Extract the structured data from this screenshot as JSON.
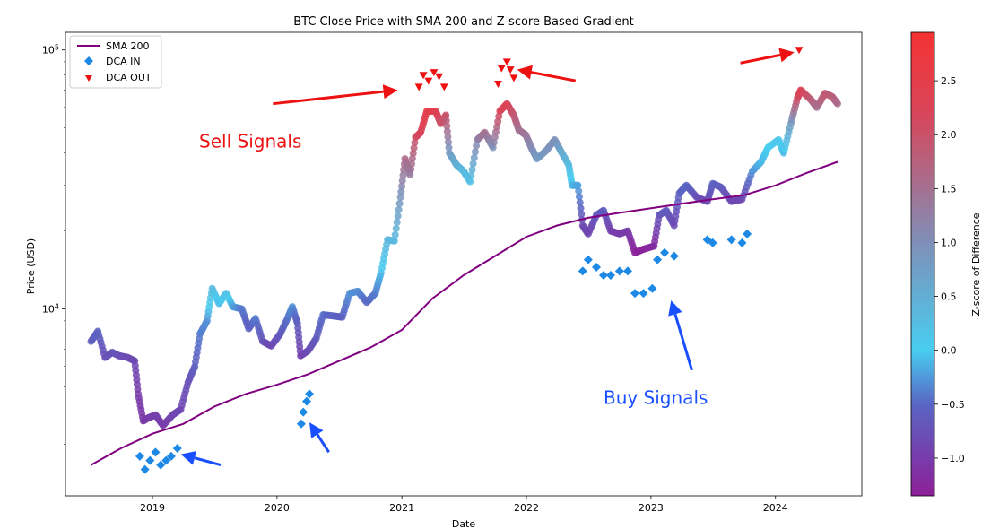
{
  "chart_data": {
    "type": "scatter",
    "title": "BTC Close Price with SMA 200 and Z-score Based Gradient",
    "xlabel": "Date",
    "ylabel": "Price (USD)",
    "y_scale": "log",
    "xlim": [
      "2018-04-21",
      "2024-09-10"
    ],
    "ylim": [
      1900,
      117000
    ],
    "x_ticks": [
      "2019",
      "2020",
      "2021",
      "2022",
      "2023",
      "2024"
    ],
    "y_ticks": [
      {
        "value": 10000,
        "base": "10",
        "exp": "4"
      },
      {
        "value": 100000,
        "base": "10",
        "exp": "5"
      }
    ],
    "legend": {
      "placement": "top-left",
      "entries": [
        {
          "label": "SMA 200",
          "color": "#800080",
          "marker": "line"
        },
        {
          "label": "DCA IN",
          "color": "#1e88e5",
          "marker": "diamond"
        },
        {
          "label": "DCA OUT",
          "color": "#ee1111",
          "marker": "triangle-down"
        }
      ]
    },
    "colorbar": {
      "label": "Z-score of Difference",
      "range": [
        -1.35,
        2.95
      ],
      "ticks": [
        -1.0,
        -0.5,
        0.0,
        0.5,
        1.0,
        1.5,
        2.0,
        2.5
      ],
      "tick_labels": [
        "−1.0",
        "−0.5",
        "0.0",
        "0.5",
        "1.0",
        "1.5",
        "2.0",
        "2.5"
      ],
      "stops": [
        {
          "v": -1.35,
          "color": "#8e1f98"
        },
        {
          "v": -0.5,
          "color": "#5966c4"
        },
        {
          "v": 0.0,
          "color": "#48cdf0"
        },
        {
          "v": 1.0,
          "color": "#7f8fb8"
        },
        {
          "v": 2.2,
          "color": "#d9455a"
        },
        {
          "v": 2.95,
          "color": "#f43232"
        }
      ]
    },
    "series": [
      {
        "name": "BTC Close Price",
        "kind": "scatter",
        "points": [
          [
            "2018-07-05",
            7500,
            -0.6
          ],
          [
            "2018-07-25",
            8200,
            -0.55
          ],
          [
            "2018-08-15",
            6500,
            -0.75
          ],
          [
            "2018-09-05",
            6800,
            -0.7
          ],
          [
            "2018-09-25",
            6600,
            -0.75
          ],
          [
            "2018-10-20",
            6500,
            -0.8
          ],
          [
            "2018-11-10",
            6300,
            -0.85
          ],
          [
            "2018-11-20",
            4700,
            -1.0
          ],
          [
            "2018-12-05",
            3700,
            -1.05
          ],
          [
            "2018-12-20",
            3800,
            -1.0
          ],
          [
            "2019-01-10",
            3900,
            -0.95
          ],
          [
            "2019-02-01",
            3550,
            -1.0
          ],
          [
            "2019-03-01",
            3900,
            -0.9
          ],
          [
            "2019-03-25",
            4100,
            -0.85
          ],
          [
            "2019-04-15",
            5200,
            -0.75
          ],
          [
            "2019-05-05",
            6000,
            -0.6
          ],
          [
            "2019-05-20",
            8000,
            -0.4
          ],
          [
            "2019-06-10",
            9000,
            -0.3
          ],
          [
            "2019-06-25",
            12000,
            0.35
          ],
          [
            "2019-07-15",
            10500,
            -0.1
          ],
          [
            "2019-08-05",
            11500,
            0.2
          ],
          [
            "2019-08-25",
            10200,
            -0.2
          ],
          [
            "2019-09-20",
            10000,
            -0.4
          ],
          [
            "2019-10-10",
            8400,
            -0.6
          ],
          [
            "2019-10-30",
            9200,
            -0.4
          ],
          [
            "2019-11-20",
            7500,
            -0.7
          ],
          [
            "2019-12-15",
            7200,
            -0.85
          ],
          [
            "2020-01-10",
            8000,
            -0.65
          ],
          [
            "2020-02-01",
            9200,
            -0.45
          ],
          [
            "2020-02-15",
            10200,
            -0.3
          ],
          [
            "2020-03-01",
            8800,
            -0.6
          ],
          [
            "2020-03-10",
            6600,
            -0.95
          ],
          [
            "2020-04-01",
            6900,
            -0.8
          ],
          [
            "2020-04-25",
            7700,
            -0.65
          ],
          [
            "2020-05-15",
            9500,
            -0.45
          ],
          [
            "2020-06-15",
            9400,
            -0.55
          ],
          [
            "2020-07-10",
            9300,
            -0.55
          ],
          [
            "2020-08-01",
            11500,
            -0.3
          ],
          [
            "2020-08-25",
            11700,
            -0.3
          ],
          [
            "2020-09-20",
            10600,
            -0.5
          ],
          [
            "2020-10-15",
            11500,
            -0.4
          ],
          [
            "2020-11-01",
            13800,
            -0.1
          ],
          [
            "2020-11-20",
            18500,
            0.4
          ],
          [
            "2020-12-10",
            18300,
            0.3
          ],
          [
            "2020-12-28",
            27000,
            0.9
          ],
          [
            "2021-01-10",
            38000,
            1.6
          ],
          [
            "2021-01-25",
            33000,
            1.3
          ],
          [
            "2021-02-10",
            46000,
            2.0
          ],
          [
            "2021-02-25",
            48000,
            2.2
          ],
          [
            "2021-03-15",
            58000,
            2.5
          ],
          [
            "2021-04-10",
            58000,
            2.4
          ],
          [
            "2021-04-25",
            52000,
            2.0
          ],
          [
            "2021-05-10",
            56000,
            2.0
          ],
          [
            "2021-05-20",
            40000,
            0.8
          ],
          [
            "2021-06-10",
            36000,
            0.5
          ],
          [
            "2021-07-01",
            34000,
            0.3
          ],
          [
            "2021-07-20",
            31000,
            0.2
          ],
          [
            "2021-08-10",
            45000,
            1.2
          ],
          [
            "2021-09-01",
            48000,
            1.5
          ],
          [
            "2021-09-25",
            42000,
            1.0
          ],
          [
            "2021-10-15",
            58000,
            2.2
          ],
          [
            "2021-11-05",
            62000,
            2.3
          ],
          [
            "2021-11-25",
            56000,
            1.9
          ],
          [
            "2021-12-10",
            49000,
            1.5
          ],
          [
            "2021-12-30",
            47000,
            1.4
          ],
          [
            "2022-01-15",
            42000,
            1.1
          ],
          [
            "2022-02-01",
            38000,
            0.8
          ],
          [
            "2022-03-01",
            41000,
            0.9
          ],
          [
            "2022-03-25",
            45000,
            1.0
          ],
          [
            "2022-04-15",
            40000,
            0.6
          ],
          [
            "2022-05-05",
            36000,
            0.3
          ],
          [
            "2022-05-15",
            30000,
            -0.1
          ],
          [
            "2022-06-01",
            30000,
            -0.2
          ],
          [
            "2022-06-15",
            21000,
            -0.8
          ],
          [
            "2022-07-01",
            19500,
            -0.9
          ],
          [
            "2022-07-25",
            23000,
            -0.7
          ],
          [
            "2022-08-15",
            24000,
            -0.6
          ],
          [
            "2022-09-05",
            20000,
            -0.95
          ],
          [
            "2022-10-01",
            19500,
            -1.0
          ],
          [
            "2022-10-25",
            20000,
            -1.0
          ],
          [
            "2022-11-15",
            16500,
            -1.3
          ],
          [
            "2022-12-10",
            17000,
            -1.3
          ],
          [
            "2023-01-10",
            17500,
            -1.2
          ],
          [
            "2023-01-25",
            23000,
            -0.7
          ],
          [
            "2023-02-15",
            24000,
            -0.6
          ],
          [
            "2023-03-10",
            21000,
            -0.85
          ],
          [
            "2023-03-25",
            28000,
            -0.55
          ],
          [
            "2023-04-15",
            30000,
            -0.5
          ],
          [
            "2023-05-15",
            27000,
            -0.75
          ],
          [
            "2023-06-15",
            26000,
            -0.85
          ],
          [
            "2023-07-01",
            30500,
            -0.55
          ],
          [
            "2023-07-25",
            29500,
            -0.6
          ],
          [
            "2023-08-25",
            26000,
            -0.85
          ],
          [
            "2023-09-25",
            26500,
            -0.85
          ],
          [
            "2023-10-25",
            34000,
            -0.3
          ],
          [
            "2023-11-20",
            37000,
            -0.1
          ],
          [
            "2023-12-10",
            42000,
            0.0
          ],
          [
            "2024-01-10",
            45000,
            0.1
          ],
          [
            "2024-01-25",
            40000,
            -0.1
          ],
          [
            "2024-02-15",
            52000,
            0.8
          ],
          [
            "2024-03-05",
            65000,
            2.0
          ],
          [
            "2024-03-15",
            70000,
            2.3
          ],
          [
            "2024-04-15",
            64000,
            1.8
          ],
          [
            "2024-05-01",
            60000,
            1.5
          ],
          [
            "2024-05-25",
            68000,
            1.9
          ],
          [
            "2024-06-15",
            66000,
            1.8
          ],
          [
            "2024-07-01",
            62000,
            1.6
          ]
        ]
      },
      {
        "name": "SMA 200",
        "kind": "line",
        "color": "#800080",
        "points": [
          [
            "2018-07-05",
            2500
          ],
          [
            "2018-10-01",
            2900
          ],
          [
            "2019-01-01",
            3300
          ],
          [
            "2019-04-01",
            3600
          ],
          [
            "2019-07-01",
            4200
          ],
          [
            "2019-10-01",
            4700
          ],
          [
            "2020-01-01",
            5100
          ],
          [
            "2020-04-01",
            5600
          ],
          [
            "2020-07-01",
            6300
          ],
          [
            "2020-10-01",
            7100
          ],
          [
            "2021-01-01",
            8300
          ],
          [
            "2021-04-01",
            11000
          ],
          [
            "2021-07-01",
            13500
          ],
          [
            "2021-10-01",
            16000
          ],
          [
            "2022-01-01",
            19000
          ],
          [
            "2022-04-01",
            21000
          ],
          [
            "2022-07-01",
            22500
          ],
          [
            "2022-10-01",
            23500
          ],
          [
            "2023-01-01",
            24500
          ],
          [
            "2023-04-01",
            25500
          ],
          [
            "2023-07-01",
            26500
          ],
          [
            "2023-10-01",
            27500
          ],
          [
            "2024-01-01",
            30000
          ],
          [
            "2024-04-01",
            33500
          ],
          [
            "2024-07-01",
            37000
          ]
        ]
      },
      {
        "name": "DCA IN",
        "kind": "scatter",
        "marker": "diamond",
        "color": "#1e88e5",
        "points": [
          [
            "2018-11-25",
            2700
          ],
          [
            "2018-12-10",
            2400
          ],
          [
            "2018-12-25",
            2600
          ],
          [
            "2019-01-10",
            2800
          ],
          [
            "2019-01-25",
            2500
          ],
          [
            "2019-02-10",
            2600
          ],
          [
            "2019-02-25",
            2700
          ],
          [
            "2019-03-15",
            2900
          ],
          [
            "2020-03-12",
            3600
          ],
          [
            "2020-03-18",
            4000
          ],
          [
            "2020-03-28",
            4400
          ],
          [
            "2020-04-05",
            4700
          ],
          [
            "2022-06-15",
            14000
          ],
          [
            "2022-07-01",
            15500
          ],
          [
            "2022-07-25",
            14500
          ],
          [
            "2022-08-15",
            13500
          ],
          [
            "2022-09-05",
            13500
          ],
          [
            "2022-10-01",
            14000
          ],
          [
            "2022-10-25",
            14000
          ],
          [
            "2022-11-15",
            11500
          ],
          [
            "2022-12-10",
            11500
          ],
          [
            "2023-01-05",
            12000
          ],
          [
            "2023-01-20",
            15500
          ],
          [
            "2023-02-10",
            16500
          ],
          [
            "2023-03-10",
            16000
          ],
          [
            "2023-06-15",
            18500
          ],
          [
            "2023-07-01",
            18000
          ],
          [
            "2023-08-25",
            18500
          ],
          [
            "2023-09-25",
            18000
          ],
          [
            "2023-10-10",
            19500
          ]
        ]
      },
      {
        "name": "DCA OUT",
        "kind": "scatter",
        "marker": "triangle-down",
        "color": "#ee1111",
        "points": [
          [
            "2021-02-20",
            72000
          ],
          [
            "2021-03-05",
            80000
          ],
          [
            "2021-03-20",
            76000
          ],
          [
            "2021-04-05",
            82000
          ],
          [
            "2021-04-20",
            79000
          ],
          [
            "2021-05-05",
            72000
          ],
          [
            "2021-10-10",
            74000
          ],
          [
            "2021-10-20",
            85000
          ],
          [
            "2021-11-05",
            90000
          ],
          [
            "2021-11-15",
            84000
          ],
          [
            "2021-11-25",
            78000
          ],
          [
            "2024-03-10",
            100000
          ]
        ]
      }
    ],
    "annotations": [
      {
        "text": "Sell Signals",
        "color": "#ee1111",
        "x": "2019-10-15",
        "y": 42000
      },
      {
        "text": "Buy Signals",
        "color": "#1a4fff",
        "x": "2023-01-15",
        "y": 4300
      }
    ],
    "arrows": [
      {
        "color": "#ee1111",
        "from": [
          "2019-12-20",
          62000
        ],
        "to": [
          "2020-12-20",
          70000
        ]
      },
      {
        "color": "#ee1111",
        "from": [
          "2022-05-25",
          76000
        ],
        "to": [
          "2021-12-05",
          84000
        ]
      },
      {
        "color": "#ee1111",
        "from": [
          "2023-09-20",
          89000
        ],
        "to": [
          "2024-02-25",
          98000
        ]
      },
      {
        "color": "#1a4fff",
        "from": [
          "2019-07-20",
          2500
        ],
        "to": [
          "2019-03-25",
          2750
        ]
      },
      {
        "color": "#1a4fff",
        "from": [
          "2020-06-01",
          2800
        ],
        "to": [
          "2020-04-05",
          3650
        ]
      },
      {
        "color": "#1a4fff",
        "from": [
          "2023-05-01",
          5800
        ],
        "to": [
          "2023-03-01",
          10800
        ]
      }
    ]
  }
}
